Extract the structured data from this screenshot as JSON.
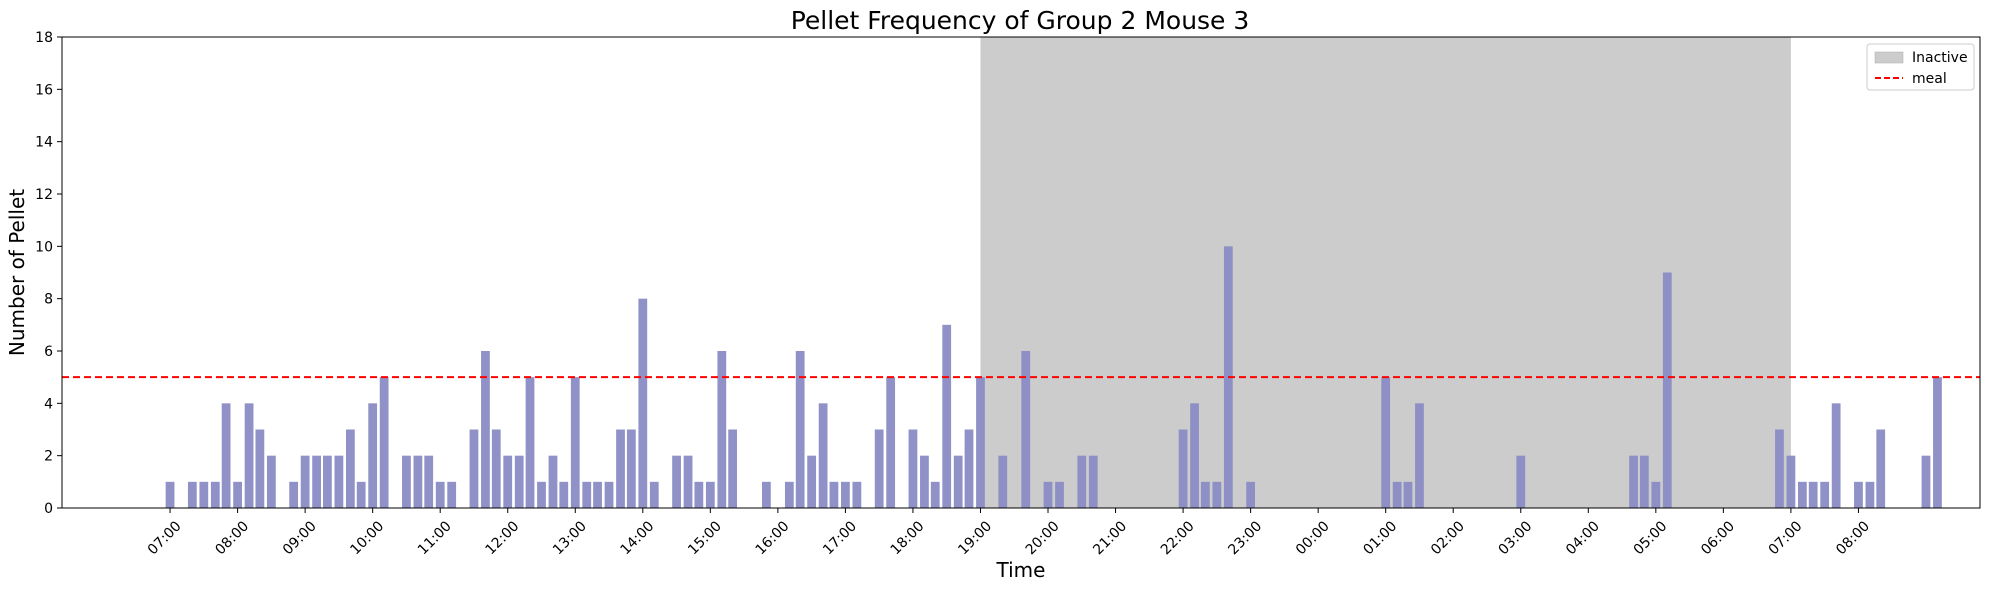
{
  "chart_data": {
    "type": "bar",
    "title": "Pellet Frequency of Group 2 Mouse 3",
    "xlabel": "Time",
    "ylabel": "Number of Pellet",
    "ylim": [
      0,
      18
    ],
    "yticks": [
      0,
      2,
      4,
      6,
      8,
      10,
      12,
      14,
      16,
      18
    ],
    "x_unit": "hours",
    "xlim": [
      5.4,
      33.8
    ],
    "xticks": [
      {
        "value": 7,
        "label": "07:00"
      },
      {
        "value": 8,
        "label": "08:00"
      },
      {
        "value": 9,
        "label": "09:00"
      },
      {
        "value": 10,
        "label": "10:00"
      },
      {
        "value": 11,
        "label": "11:00"
      },
      {
        "value": 12,
        "label": "12:00"
      },
      {
        "value": 13,
        "label": "13:00"
      },
      {
        "value": 14,
        "label": "14:00"
      },
      {
        "value": 15,
        "label": "15:00"
      },
      {
        "value": 16,
        "label": "16:00"
      },
      {
        "value": 17,
        "label": "17:00"
      },
      {
        "value": 18,
        "label": "18:00"
      },
      {
        "value": 19,
        "label": "19:00"
      },
      {
        "value": 20,
        "label": "20:00"
      },
      {
        "value": 21,
        "label": "21:00"
      },
      {
        "value": 22,
        "label": "22:00"
      },
      {
        "value": 23,
        "label": "23:00"
      },
      {
        "value": 24,
        "label": "00:00"
      },
      {
        "value": 25,
        "label": "01:00"
      },
      {
        "value": 26,
        "label": "02:00"
      },
      {
        "value": 27,
        "label": "03:00"
      },
      {
        "value": 28,
        "label": "04:00"
      },
      {
        "value": 29,
        "label": "05:00"
      },
      {
        "value": 30,
        "label": "06:00"
      },
      {
        "value": 31,
        "label": "07:00"
      },
      {
        "value": 32,
        "label": "08:00"
      }
    ],
    "bar_color": "#8a8cc4",
    "bar_width": 0.13,
    "bars": [
      {
        "x": 7.0,
        "y": 1
      },
      {
        "x": 7.33,
        "y": 1
      },
      {
        "x": 7.5,
        "y": 1
      },
      {
        "x": 7.67,
        "y": 1
      },
      {
        "x": 7.83,
        "y": 4
      },
      {
        "x": 8.0,
        "y": 1
      },
      {
        "x": 8.17,
        "y": 4
      },
      {
        "x": 8.33,
        "y": 3
      },
      {
        "x": 8.5,
        "y": 2
      },
      {
        "x": 8.83,
        "y": 1
      },
      {
        "x": 9.0,
        "y": 2
      },
      {
        "x": 9.17,
        "y": 2
      },
      {
        "x": 9.33,
        "y": 2
      },
      {
        "x": 9.5,
        "y": 2
      },
      {
        "x": 9.67,
        "y": 3
      },
      {
        "x": 9.83,
        "y": 1
      },
      {
        "x": 10.0,
        "y": 4
      },
      {
        "x": 10.17,
        "y": 5
      },
      {
        "x": 10.5,
        "y": 2
      },
      {
        "x": 10.67,
        "y": 2
      },
      {
        "x": 10.83,
        "y": 2
      },
      {
        "x": 11.0,
        "y": 1
      },
      {
        "x": 11.17,
        "y": 1
      },
      {
        "x": 11.5,
        "y": 3
      },
      {
        "x": 11.67,
        "y": 6
      },
      {
        "x": 11.83,
        "y": 3
      },
      {
        "x": 12.0,
        "y": 2
      },
      {
        "x": 12.17,
        "y": 2
      },
      {
        "x": 12.33,
        "y": 5
      },
      {
        "x": 12.5,
        "y": 1
      },
      {
        "x": 12.67,
        "y": 2
      },
      {
        "x": 12.83,
        "y": 1
      },
      {
        "x": 13.0,
        "y": 5
      },
      {
        "x": 13.17,
        "y": 1
      },
      {
        "x": 13.33,
        "y": 1
      },
      {
        "x": 13.5,
        "y": 1
      },
      {
        "x": 13.67,
        "y": 3
      },
      {
        "x": 13.83,
        "y": 3
      },
      {
        "x": 14.0,
        "y": 8
      },
      {
        "x": 14.17,
        "y": 1
      },
      {
        "x": 14.5,
        "y": 2
      },
      {
        "x": 14.67,
        "y": 2
      },
      {
        "x": 14.83,
        "y": 1
      },
      {
        "x": 15.0,
        "y": 1
      },
      {
        "x": 15.17,
        "y": 6
      },
      {
        "x": 15.33,
        "y": 3
      },
      {
        "x": 15.83,
        "y": 1
      },
      {
        "x": 16.17,
        "y": 1
      },
      {
        "x": 16.33,
        "y": 6
      },
      {
        "x": 16.5,
        "y": 2
      },
      {
        "x": 16.67,
        "y": 4
      },
      {
        "x": 16.83,
        "y": 1
      },
      {
        "x": 17.0,
        "y": 1
      },
      {
        "x": 17.17,
        "y": 1
      },
      {
        "x": 17.5,
        "y": 3
      },
      {
        "x": 17.67,
        "y": 5
      },
      {
        "x": 18.0,
        "y": 3
      },
      {
        "x": 18.17,
        "y": 2
      },
      {
        "x": 18.33,
        "y": 1
      },
      {
        "x": 18.5,
        "y": 7
      },
      {
        "x": 18.67,
        "y": 2
      },
      {
        "x": 18.83,
        "y": 3
      },
      {
        "x": 19.0,
        "y": 5
      },
      {
        "x": 19.33,
        "y": 2
      },
      {
        "x": 19.67,
        "y": 6
      },
      {
        "x": 20.0,
        "y": 1
      },
      {
        "x": 20.17,
        "y": 1
      },
      {
        "x": 20.5,
        "y": 2
      },
      {
        "x": 20.67,
        "y": 2
      },
      {
        "x": 22.0,
        "y": 3
      },
      {
        "x": 22.17,
        "y": 4
      },
      {
        "x": 22.33,
        "y": 1
      },
      {
        "x": 22.5,
        "y": 1
      },
      {
        "x": 22.67,
        "y": 10
      },
      {
        "x": 23.0,
        "y": 1
      },
      {
        "x": 25.0,
        "y": 5
      },
      {
        "x": 25.17,
        "y": 1
      },
      {
        "x": 25.33,
        "y": 1
      },
      {
        "x": 25.5,
        "y": 4
      },
      {
        "x": 27.0,
        "y": 2
      },
      {
        "x": 28.67,
        "y": 2
      },
      {
        "x": 28.83,
        "y": 2
      },
      {
        "x": 29.0,
        "y": 1
      },
      {
        "x": 29.17,
        "y": 9
      },
      {
        "x": 30.83,
        "y": 3
      },
      {
        "x": 31.0,
        "y": 2
      },
      {
        "x": 31.17,
        "y": 1
      },
      {
        "x": 31.33,
        "y": 1
      },
      {
        "x": 31.5,
        "y": 1
      },
      {
        "x": 31.67,
        "y": 4
      },
      {
        "x": 32.0,
        "y": 1
      },
      {
        "x": 32.17,
        "y": 1
      },
      {
        "x": 32.33,
        "y": 3
      },
      {
        "x": 33.0,
        "y": 2
      },
      {
        "x": 33.17,
        "y": 5
      }
    ],
    "inactive_span": {
      "start": 19.0,
      "end": 31.0,
      "color": "#cccccc",
      "label": "Inactive"
    },
    "meal_line": {
      "y": 5,
      "color": "#ff0000",
      "style": "dashed",
      "label": "meal"
    },
    "grid": false,
    "legend_placement": "top-right",
    "legend": [
      {
        "label": "Inactive",
        "swatch": "patch",
        "color": "#cccccc"
      },
      {
        "label": "meal",
        "swatch": "dashed-line",
        "color": "#ff0000"
      }
    ]
  }
}
